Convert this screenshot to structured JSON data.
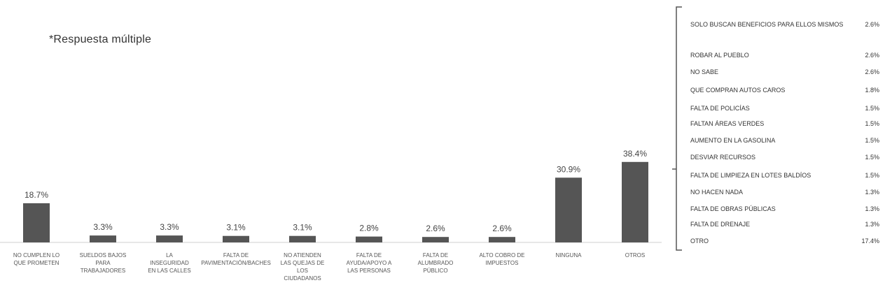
{
  "note": "*Respuesta múltiple",
  "chart_data": {
    "type": "bar",
    "categories": [
      "NO CUMPLEN LO QUE PROMETEN",
      "SUELDOS BAJOS PARA TRABAJADORES",
      "LA INSEGURIDAD EN LAS CALLES",
      "FALTA DE PAVIMENTACIÓN/BACHES",
      "NO ATIENDEN LAS QUEJAS DE LOS CIUDADANOS",
      "FALTA DE AYUDA/APOYO A LAS PERSONAS",
      "FALTA DE ALUMBRADO PÚBLICO",
      "ALTO COBRO DE IMPUESTOS",
      "NINGUNA",
      "OTROS"
    ],
    "values": [
      18.7,
      3.3,
      3.3,
      3.1,
      3.1,
      2.8,
      2.6,
      2.6,
      30.9,
      38.4
    ],
    "value_labels": [
      "18.7%",
      "3.3%",
      "3.3%",
      "3.1%",
      "3.1%",
      "2.8%",
      "2.6%",
      "2.6%",
      "30.9%",
      "38.4%"
    ],
    "bar_color": "#555555",
    "ylim": [
      0,
      45
    ]
  },
  "otros_breakdown": [
    {
      "label": "SOLO BUSCAN BENEFICIOS PARA ELLOS MISMOS",
      "value": "2.6%"
    },
    {
      "label": "ROBAR AL PUEBLO",
      "value": "2.6%"
    },
    {
      "label": "NO SABE",
      "value": "2.6%"
    },
    {
      "label": "QUE COMPRAN AUTOS CAROS",
      "value": "1.8%"
    },
    {
      "label": "FALTA DE POLICÍAS",
      "value": "1.5%"
    },
    {
      "label": "FALTAN ÁREAS VERDES",
      "value": "1.5%"
    },
    {
      "label": "AUMENTO EN LA GASOLINA",
      "value": "1.5%"
    },
    {
      "label": "DESVIAR RECURSOS",
      "value": "1.5%"
    },
    {
      "label": "FALTA DE LIMPIEZA EN LOTES BALDÍOS",
      "value": "1.5%"
    },
    {
      "label": "NO HACEN NADA",
      "value": "1.3%"
    },
    {
      "label": "FALTA DE OBRAS PÚBLICAS",
      "value": "1.3%"
    },
    {
      "label": "FALTA DE DRENAJE",
      "value": "1.3%"
    },
    {
      "label": "OTRO",
      "value": "17.4%"
    }
  ]
}
